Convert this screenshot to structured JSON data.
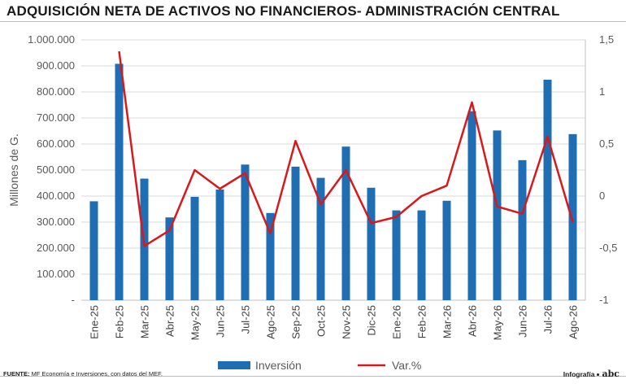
{
  "title": "ADQUISICIÓN NETA DE ACTIVOS NO FINANCIEROS- ADMINISTRACIÓN CENTRAL",
  "source_label": "FUENTE:",
  "source_text": "MF Economía e Inversiones, con datos del MEF.",
  "brand_label": "Infografía",
  "brand_logo": "abc",
  "chart_data": {
    "type": "bar",
    "categories": [
      "Ene-25",
      "Feb-25",
      "Mar-25",
      "Abr-25",
      "May-25",
      "Jun-25",
      "Jul-25",
      "Ago-25",
      "Sep-25",
      "Oct-25",
      "Nov-25",
      "Dic-25",
      "Ene-26",
      "Feb-26",
      "Mar-26",
      "Abr-26",
      "May-26",
      "Jun-26",
      "Jul-26",
      "Ago-26"
    ],
    "series": [
      {
        "name": "Inversión",
        "type": "bar",
        "axis": "left",
        "color": "#1f6db3",
        "values": [
          380000,
          908000,
          467000,
          318000,
          397000,
          425000,
          521000,
          335000,
          513000,
          470000,
          590000,
          432000,
          345000,
          345000,
          382000,
          726000,
          652000,
          538000,
          847000,
          638000
        ]
      },
      {
        "name": "Var.%",
        "type": "line",
        "axis": "right",
        "color": "#d7191c",
        "values": [
          null,
          1.39,
          -0.48,
          -0.33,
          0.25,
          0.07,
          0.22,
          -0.36,
          0.53,
          -0.08,
          0.25,
          -0.26,
          -0.2,
          0.0,
          0.1,
          0.9,
          -0.1,
          -0.17,
          0.57,
          -0.25
        ]
      }
    ],
    "ylabel": "Millones de G.",
    "ylim": [
      0,
      1000000
    ],
    "y_ticks": [
      "-",
      "100.000",
      "200.000",
      "300.000",
      "400.000",
      "500.000",
      "600.000",
      "700.000",
      "800.000",
      "900.000",
      "1.000.000"
    ],
    "y2lim": [
      -1,
      1.5
    ],
    "y2_ticks": [
      "-1",
      "-0,5",
      "0",
      "0,5",
      "1",
      "1,5"
    ],
    "grid": true,
    "legend_position": "bottom"
  }
}
